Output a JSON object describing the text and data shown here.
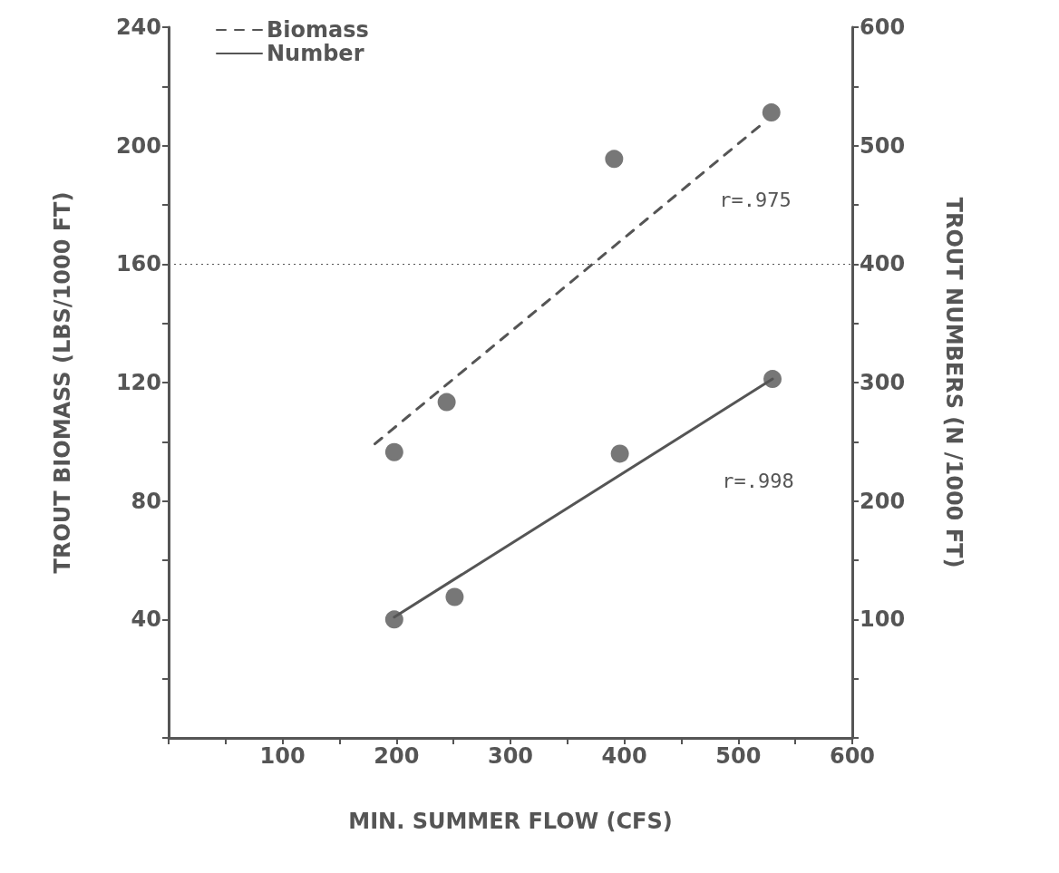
{
  "chart_data": {
    "type": "scatter",
    "xlabel": "MIN. SUMMER FLOW (CFS)",
    "ylabel": "TROUT BIOMASS (LBS/1000 FT)",
    "y2label": "TROUT NUMBERS (N /1000 FT)",
    "xlim": [
      0,
      600
    ],
    "xticks": [
      {
        "value": 0,
        "label": null
      },
      {
        "value": 50,
        "label": null
      },
      100,
      {
        "value": 150,
        "label": null
      },
      200,
      {
        "value": 250,
        "label": null
      },
      300,
      {
        "value": 350,
        "label": null
      },
      400,
      {
        "value": 450,
        "label": null
      },
      500,
      {
        "value": 550,
        "label": null
      },
      600
    ],
    "ylim": [
      0,
      240
    ],
    "yticks": [
      {
        "value": 0,
        "label": null
      },
      {
        "value": 20,
        "label": null
      },
      40,
      {
        "value": 60,
        "label": null
      },
      80,
      {
        "value": 100,
        "label": null
      },
      120,
      {
        "value": 140,
        "label": null
      },
      160,
      {
        "value": 180,
        "label": null
      },
      200,
      {
        "value": 220,
        "label": null
      },
      240
    ],
    "y2lim": [
      0,
      600
    ],
    "y2ticks": [
      {
        "value": 0,
        "label": null
      },
      {
        "value": 50,
        "label": null
      },
      100,
      {
        "value": 150,
        "label": null
      },
      200,
      {
        "value": 250,
        "label": null
      },
      300,
      {
        "value": 350,
        "label": null
      },
      400,
      {
        "value": 450,
        "label": null
      },
      500,
      {
        "value": 550,
        "label": null
      },
      600
    ],
    "grid": false,
    "legend": "top left",
    "series": [
      {
        "marker": "circle",
        "color": "#555555",
        "x": [
          198,
          244,
          391,
          529
        ],
        "values": [
          96.5,
          113.4,
          195.5,
          211.2
        ]
      },
      {
        "name": "Biomass",
        "type": "line",
        "marker": "none",
        "line_style": "dashed",
        "color": "#555555",
        "x": [
          181,
          524
        ],
        "values": [
          99.3,
          208.3
        ]
      },
      {
        "marker": "circle",
        "axis": "y2",
        "color": "#555555",
        "x": [
          198,
          251,
          396,
          530
        ],
        "values": [
          100,
          119,
          240,
          303
        ]
      },
      {
        "name": "Number",
        "type": "line",
        "marker": "none",
        "line_style": "solid",
        "axis": "y2",
        "color": "#555555",
        "x": [
          198,
          530
        ],
        "values": [
          102,
          303
        ]
      }
    ],
    "ref_lines": [
      {
        "axis": "y",
        "value": 160,
        "line_style": "dotted",
        "color": "#555555"
      }
    ],
    "annotations": [
      "r=.975",
      "r=.998"
    ]
  }
}
